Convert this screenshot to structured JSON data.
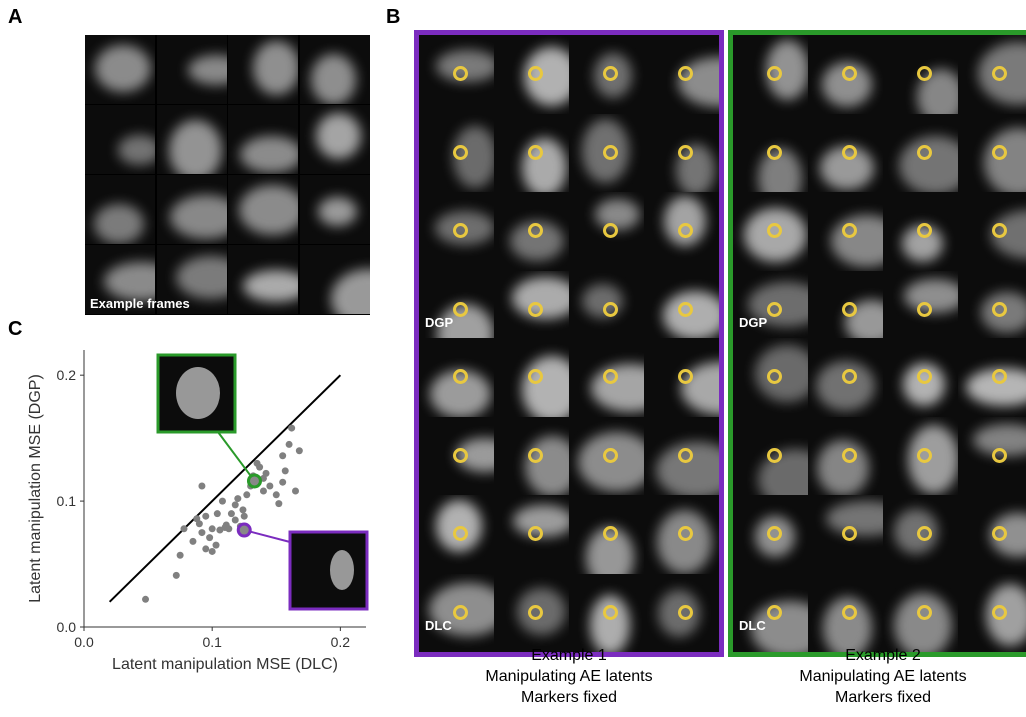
{
  "panels": {
    "a": {
      "label": "A",
      "caption": "Example frames"
    },
    "b": {
      "label": "B",
      "examples": [
        {
          "top_label": "DGP",
          "bottom_label": "DLC",
          "caption": [
            "Example 1",
            "Manipulating AE latents",
            "Markers fixed"
          ],
          "color": "#7b2cbf"
        },
        {
          "top_label": "DGP",
          "bottom_label": "DLC",
          "caption": [
            "Example 2",
            "Manipulating AE latents",
            "Markers fixed"
          ],
          "color": "#2a9a2a"
        }
      ]
    },
    "c": {
      "label": "C"
    }
  },
  "chart_data": {
    "type": "scatter",
    "x_label": "Latent manipulation MSE (DLC)",
    "y_label": "Latent manipulation MSE (DGP)",
    "xlim": [
      0,
      0.22
    ],
    "ylim": [
      0,
      0.22
    ],
    "xticks": [
      {
        "value": 0,
        "label": "0.0"
      },
      0.1,
      0.2
    ],
    "yticks": [
      {
        "value": 0,
        "label": "0.0"
      },
      0.1,
      0.2
    ],
    "color": "#808080",
    "x": [
      0.048,
      0.072,
      0.075,
      0.078,
      0.085,
      0.088,
      0.09,
      0.092,
      0.095,
      0.095,
      0.098,
      0.1,
      0.1,
      0.103,
      0.104,
      0.106,
      0.108,
      0.11,
      0.111,
      0.113,
      0.115,
      0.118,
      0.12,
      0.122,
      0.124,
      0.125,
      0.127,
      0.13,
      0.132,
      0.135,
      0.137,
      0.14,
      0.142,
      0.145,
      0.15,
      0.152,
      0.155,
      0.157,
      0.16,
      0.162,
      0.165,
      0.168,
      0.155,
      0.14,
      0.092,
      0.118
    ],
    "y": [
      0.022,
      0.041,
      0.057,
      0.078,
      0.068,
      0.086,
      0.082,
      0.075,
      0.062,
      0.088,
      0.071,
      0.06,
      0.078,
      0.065,
      0.09,
      0.077,
      0.1,
      0.079,
      0.081,
      0.078,
      0.09,
      0.085,
      0.102,
      0.08,
      0.093,
      0.088,
      0.105,
      0.112,
      0.12,
      0.13,
      0.127,
      0.118,
      0.122,
      0.112,
      0.105,
      0.098,
      0.115,
      0.124,
      0.145,
      0.158,
      0.108,
      0.14,
      0.136,
      0.108,
      0.112,
      0.097
    ],
    "highlights": [
      {
        "color": "#2a9a2a",
        "x": 0.133,
        "y": 0.116
      },
      {
        "color": "#7b2cbf",
        "x": 0.125,
        "y": 0.077
      }
    ],
    "reference_line": {
      "x": [
        0.02,
        0.2
      ],
      "y": [
        0.02,
        0.2
      ]
    }
  }
}
